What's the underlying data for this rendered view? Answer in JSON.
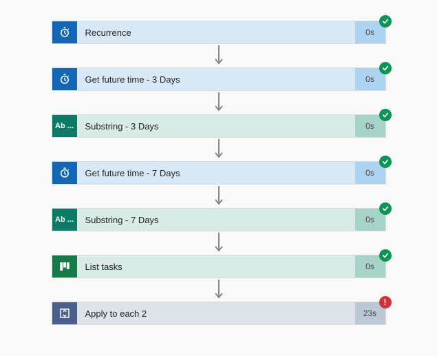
{
  "flow": {
    "colors": {
      "arrow": "#707070",
      "badge_success_bg": "#0e9455",
      "badge_error_bg": "#d13438"
    },
    "steps": [
      {
        "icon": "clock",
        "icon_bg": "#1267b6",
        "icon_label": "",
        "label": "Recurrence",
        "body_bg": "#d9e8f6",
        "dur_bg": "#add3f1",
        "duration": "0s",
        "status": "success"
      },
      {
        "icon": "clock",
        "icon_bg": "#1267b6",
        "icon_label": "",
        "label": "Get future time - 3 Days",
        "body_bg": "#d9e8f6",
        "dur_bg": "#add3f1",
        "duration": "0s",
        "status": "success"
      },
      {
        "icon": "text",
        "icon_bg": "#0d7a66",
        "icon_label": "Ab ...",
        "label": "Substring - 3 Days",
        "body_bg": "#d8ebe7",
        "dur_bg": "#a8d3c9",
        "duration": "0s",
        "status": "success"
      },
      {
        "icon": "clock",
        "icon_bg": "#1267b6",
        "icon_label": "",
        "label": "Get future time - 7 Days",
        "body_bg": "#d9e8f6",
        "dur_bg": "#add3f1",
        "duration": "0s",
        "status": "success"
      },
      {
        "icon": "text",
        "icon_bg": "#0d7a66",
        "icon_label": "Ab ...",
        "label": "Substring - 7 Days",
        "body_bg": "#d8ebe7",
        "dur_bg": "#a8d3c9",
        "duration": "0s",
        "status": "success"
      },
      {
        "icon": "planner",
        "icon_bg": "#177848",
        "icon_label": "",
        "label": "List tasks",
        "body_bg": "#d8ebe7",
        "dur_bg": "#a8d3c9",
        "duration": "0s",
        "status": "success"
      },
      {
        "icon": "loop",
        "icon_bg": "#4a6088",
        "icon_label": "",
        "label": "Apply to each 2",
        "body_bg": "#dee3ea",
        "dur_bg": "#bdc8d6",
        "duration": "23s",
        "status": "error"
      }
    ]
  }
}
